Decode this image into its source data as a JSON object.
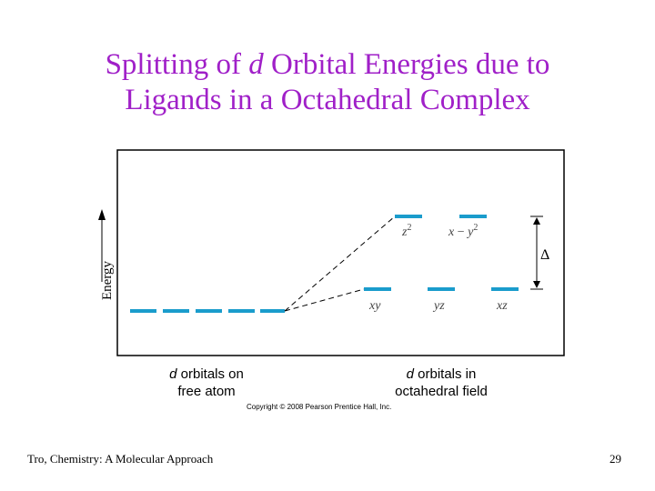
{
  "title": {
    "line1_pre": "Splitting of ",
    "line1_italic": "d",
    "line1_post": " Orbital Energies due to",
    "line2": "Ligands in a Octahedral Complex"
  },
  "diagram": {
    "y_axis_label": "Energy",
    "upper_orbitals": [
      {
        "sym": "z",
        "sup": "2"
      },
      {
        "sym": "x",
        "mid": " − ",
        "sym2": "y",
        "sup": "2"
      }
    ],
    "lower_orbitals": [
      "xy",
      "yz",
      "xz"
    ],
    "delta_label": "Δ",
    "caption_left": {
      "italic": "d",
      "line1": " orbitals on",
      "line2": "free atom"
    },
    "caption_right": {
      "italic": "d",
      "line1": " orbitals in",
      "line2": "octahedral field"
    },
    "copyright": "Copyright © 2008 Pearson Prentice Hall, Inc.",
    "colors": {
      "orbital": "#1a9ccc",
      "title": "#a020c8",
      "line": "#000000"
    }
  },
  "footer": {
    "left": "Tro, Chemistry: A Molecular Approach",
    "right": "29"
  }
}
